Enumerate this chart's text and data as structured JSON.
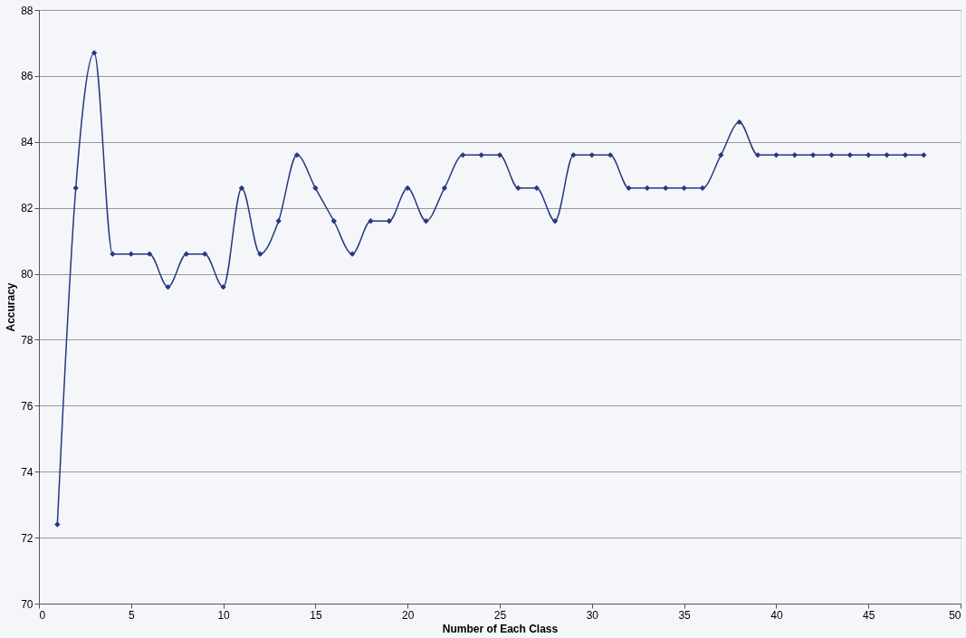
{
  "chart_data": {
    "type": "line",
    "xlabel": "Number of Each Class",
    "ylabel": "Accuracy",
    "x": [
      1,
      2,
      3,
      4,
      5,
      6,
      7,
      8,
      9,
      10,
      11,
      12,
      13,
      14,
      15,
      16,
      17,
      18,
      19,
      20,
      21,
      22,
      23,
      24,
      25,
      26,
      27,
      28,
      29,
      30,
      31,
      32,
      33,
      34,
      35,
      36,
      37,
      38,
      39,
      40,
      41,
      42,
      43,
      44,
      45,
      46,
      47,
      48
    ],
    "series": [
      {
        "color": "#27397f",
        "values": [
          72.4,
          82.6,
          86.7,
          80.6,
          80.6,
          80.6,
          79.6,
          80.6,
          80.6,
          79.6,
          82.6,
          80.6,
          81.6,
          83.6,
          82.6,
          81.6,
          80.6,
          81.6,
          81.6,
          82.6,
          81.6,
          82.6,
          83.6,
          83.6,
          83.6,
          82.6,
          82.6,
          81.6,
          83.6,
          83.6,
          83.6,
          82.6,
          82.6,
          82.6,
          82.6,
          82.6,
          83.6,
          84.6,
          83.6,
          83.6,
          83.6,
          83.6,
          83.6,
          83.6,
          83.6,
          83.6,
          83.6,
          83.6
        ]
      }
    ],
    "xlim": [
      0,
      50
    ],
    "xticks": [
      0,
      5,
      10,
      15,
      20,
      25,
      30,
      35,
      40,
      45,
      50
    ],
    "ylim": [
      70,
      88
    ],
    "yticks": [
      70,
      72,
      74,
      76,
      78,
      80,
      82,
      84,
      86,
      88
    ],
    "grid": "y",
    "marker": "diamond",
    "line_style": "solid"
  }
}
